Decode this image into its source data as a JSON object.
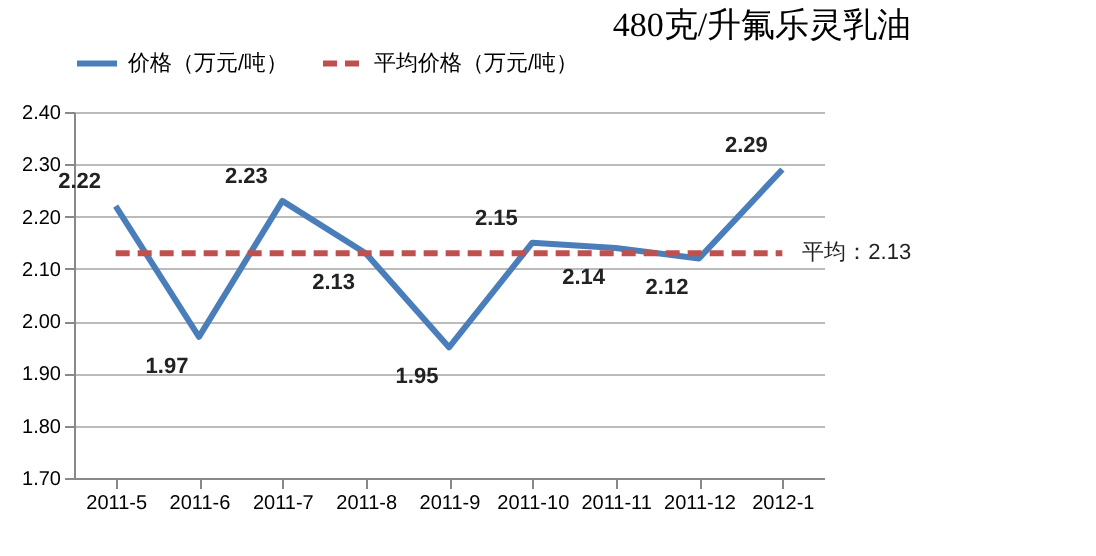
{
  "chart_data": {
    "type": "line",
    "title": "480克/升氟乐灵乳油",
    "categories": [
      "2011-5",
      "2011-6",
      "2011-7",
      "2011-8",
      "2011-9",
      "2011-10",
      "2011-11",
      "2011-12",
      "2012-1"
    ],
    "series": [
      {
        "name": "价格（万元/吨）",
        "color": "#4a7ebb",
        "line_style": "solid",
        "values": [
          2.22,
          1.97,
          2.23,
          2.13,
          1.95,
          2.15,
          2.14,
          2.12,
          2.29
        ],
        "value_labels": [
          "2.22",
          "1.97",
          "2.23",
          "2.13",
          "1.95",
          "2.15",
          "2.14",
          "2.12",
          "2.29"
        ]
      },
      {
        "name": "平均价格（万元/吨）",
        "color": "#c0504d",
        "line_style": "dashed",
        "values": [
          2.13,
          2.13,
          2.13,
          2.13,
          2.13,
          2.13,
          2.13,
          2.13,
          2.13
        ]
      }
    ],
    "annotations": [
      {
        "text": "平均：2.13",
        "x": "2012-1",
        "y": 2.13
      }
    ],
    "ylim": [
      1.7,
      2.4
    ],
    "yticks": [
      {
        "value": 1.7,
        "label": "1.70"
      },
      {
        "value": 1.8,
        "label": "1.80"
      },
      {
        "value": 1.9,
        "label": "1.90"
      },
      {
        "value": 2.0,
        "label": "2.00"
      },
      {
        "value": 2.1,
        "label": "2.10"
      },
      {
        "value": 2.2,
        "label": "2.20"
      },
      {
        "value": 2.3,
        "label": "2.30"
      },
      {
        "value": 2.4,
        "label": "2.40"
      }
    ],
    "grid": "y",
    "legend": "top",
    "marker": "none"
  }
}
